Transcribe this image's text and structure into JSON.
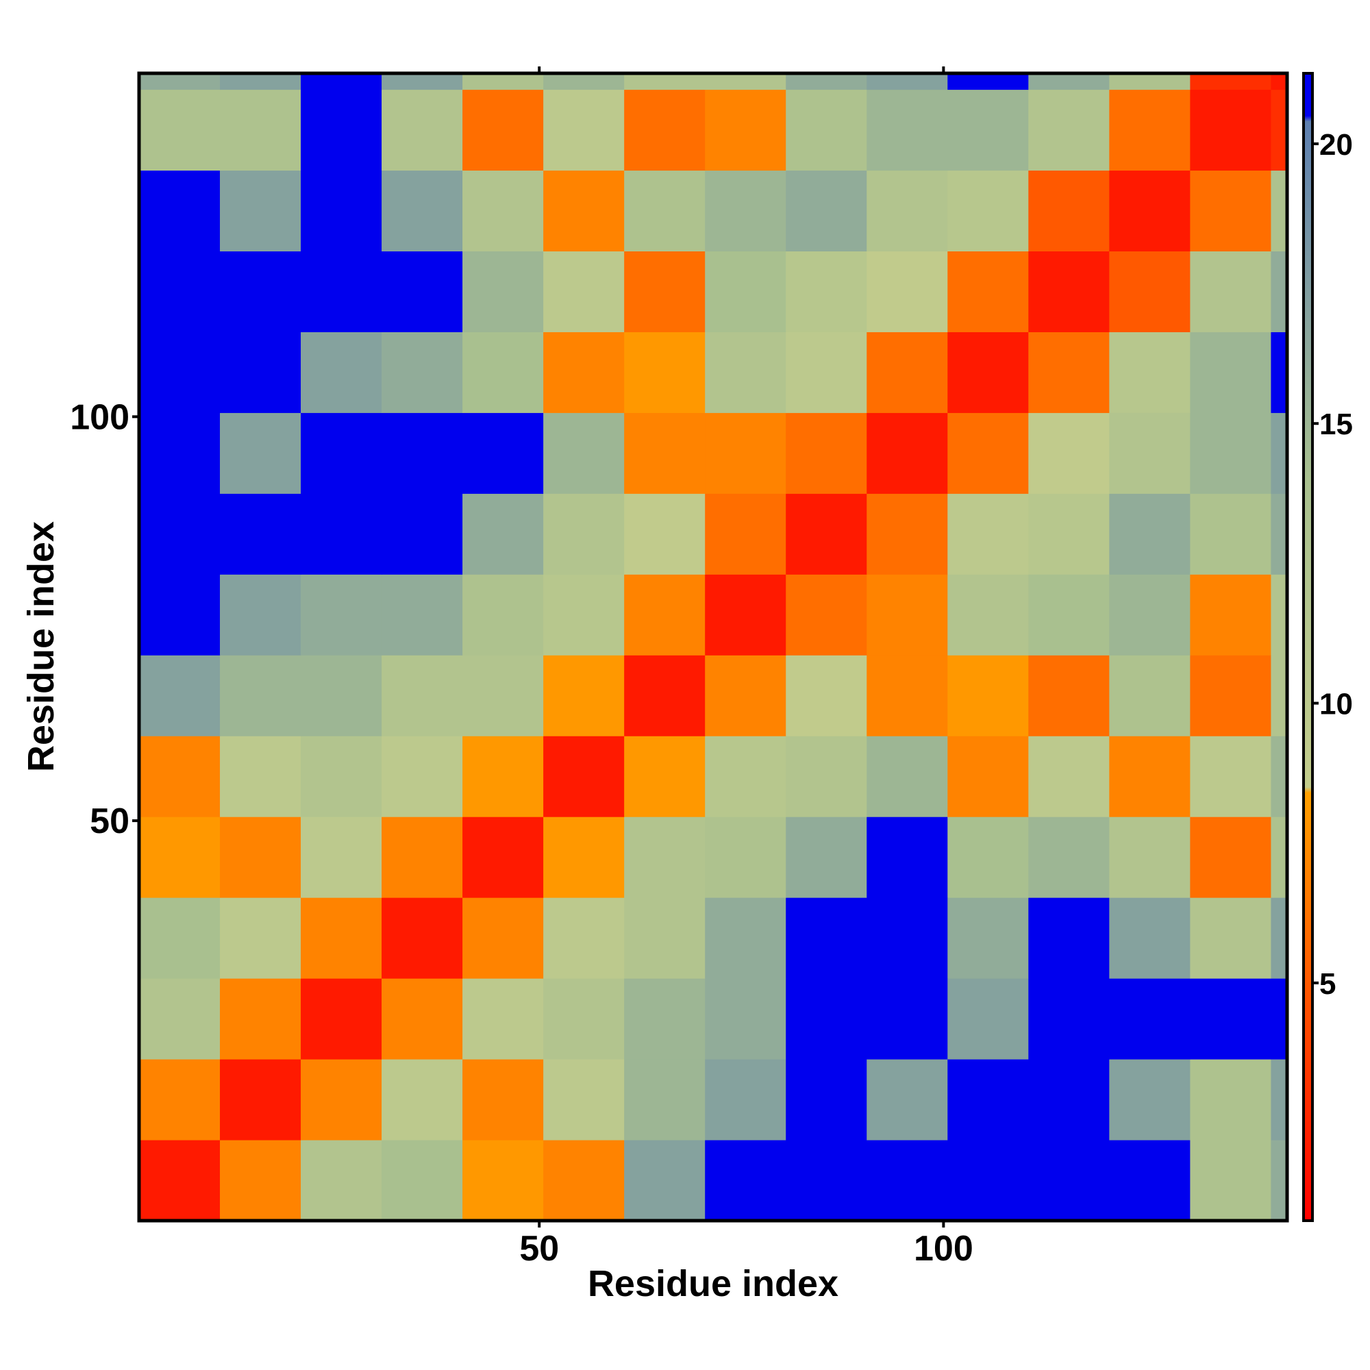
{
  "chart_data": {
    "type": "heatmap",
    "xlabel": "Residue index",
    "ylabel": "Residue index",
    "x_bins": [
      0.5,
      10.5,
      20.5,
      30.5,
      40.5,
      50.5,
      60.5,
      70.5,
      80.5,
      90.5,
      100.5,
      110.5,
      120.5,
      130.5,
      140.5,
      142.5
    ],
    "y_bins": [
      0.5,
      10.5,
      20.5,
      30.5,
      40.5,
      50.5,
      60.5,
      70.5,
      80.5,
      90.5,
      100.5,
      110.5,
      120.5,
      130.5,
      140.5,
      142.5
    ],
    "xlim": [
      0.5,
      142.5
    ],
    "ylim": [
      0.5,
      142.5
    ],
    "xticks": [
      50,
      100
    ],
    "yticks": [
      50,
      100
    ],
    "values": [
      [
        2,
        7,
        12,
        14,
        8,
        7,
        17,
        21,
        21,
        21,
        21,
        21,
        21,
        13,
        16
      ],
      [
        7,
        2,
        7,
        10,
        7,
        10,
        15,
        17,
        21,
        17,
        21,
        21,
        17,
        13,
        17
      ],
      [
        12,
        7,
        2,
        7,
        10,
        12,
        15,
        16,
        21,
        21,
        17,
        21,
        21,
        21,
        21
      ],
      [
        14,
        10,
        7,
        2,
        7,
        10,
        12,
        16,
        21,
        21,
        16,
        21,
        17,
        12,
        17
      ],
      [
        8,
        7,
        10,
        7,
        2,
        8,
        12,
        13,
        16,
        21,
        14,
        15,
        12,
        6,
        13
      ],
      [
        7,
        10,
        12,
        10,
        8,
        2,
        8,
        11,
        12,
        15,
        7,
        10,
        7,
        10,
        15
      ],
      [
        17,
        15,
        15,
        12,
        12,
        8,
        2,
        7,
        9,
        7,
        8,
        6,
        13,
        6,
        12
      ],
      [
        21,
        17,
        16,
        16,
        13,
        11,
        7,
        2,
        6,
        7,
        12,
        14,
        15,
        7,
        12
      ],
      [
        21,
        21,
        21,
        21,
        16,
        12,
        9,
        6,
        2,
        6,
        10,
        11,
        16,
        13,
        16
      ],
      [
        21,
        17,
        21,
        21,
        21,
        15,
        7,
        7,
        6,
        2,
        6,
        9,
        12,
        15,
        17
      ],
      [
        21,
        21,
        17,
        16,
        14,
        7,
        8,
        12,
        10,
        6,
        2,
        6,
        11,
        15,
        21
      ],
      [
        21,
        21,
        21,
        21,
        15,
        10,
        6,
        14,
        11,
        9,
        6,
        2,
        5,
        12,
        16
      ],
      [
        21,
        17,
        21,
        17,
        12,
        7,
        13,
        15,
        16,
        12,
        11,
        5,
        2,
        6,
        13
      ],
      [
        13,
        13,
        21,
        12,
        6,
        10,
        6,
        7,
        13,
        15,
        15,
        12,
        6,
        2,
        3
      ],
      [
        16,
        17,
        21,
        17,
        13,
        15,
        12,
        12,
        16,
        17,
        21,
        16,
        13,
        3,
        2
      ]
    ],
    "colorbar": {
      "lim": [
        0.75,
        21.26
      ],
      "ticks": [
        5,
        10,
        15,
        20
      ],
      "stops": [
        {
          "value": 0.75,
          "color": "#ff0000"
        },
        {
          "value": 8.4,
          "color": "#ffa000"
        },
        {
          "value": 8.5,
          "color": "#c3cc8c"
        },
        {
          "value": 14,
          "color": "#a9c08f"
        },
        {
          "value": 20.4,
          "color": "#5d7fb0"
        },
        {
          "value": 20.5,
          "color": "#0000ee"
        },
        {
          "value": 21.26,
          "color": "#0000ee"
        }
      ]
    }
  }
}
